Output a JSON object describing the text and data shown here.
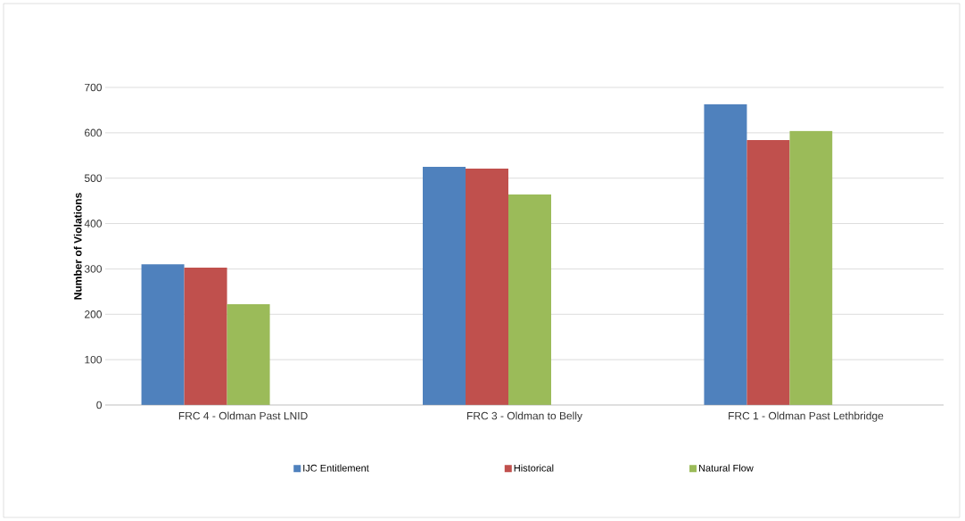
{
  "chart_data": {
    "type": "bar",
    "ylabel": "Number of Violations",
    "categories": [
      "FRC 4 - Oldman  Past LNID",
      "FRC 3 - Oldman  to Belly",
      "FRC 1 - Oldman  Past Lethbridge"
    ],
    "series": [
      {
        "name": "IJC Entitlement",
        "color": "#4f81bd",
        "values": [
          310,
          525,
          663
        ]
      },
      {
        "name": "Historical",
        "color": "#c0504d",
        "values": [
          303,
          521,
          584
        ]
      },
      {
        "name": "Natural Flow",
        "color": "#9bbb59",
        "values": [
          222,
          464,
          604
        ]
      }
    ],
    "ylim": [
      0,
      700
    ],
    "yticks": [
      0,
      100,
      200,
      300,
      400,
      500,
      600,
      700
    ],
    "grid": "y",
    "legend": "bottom"
  }
}
